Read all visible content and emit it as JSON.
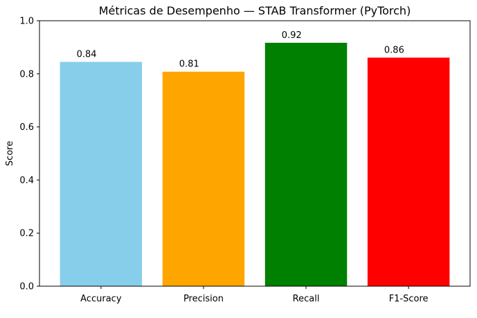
{
  "chart_data": {
    "type": "bar",
    "title": "Métricas de Desempenho — STAB Transformer (PyTorch)",
    "xlabel": "",
    "ylabel": "Score",
    "categories": [
      "Accuracy",
      "Precision",
      "Recall",
      "F1-Score"
    ],
    "values": [
      0.845,
      0.808,
      0.917,
      0.861
    ],
    "value_labels": [
      "0.84",
      "0.81",
      "0.92",
      "0.86"
    ],
    "colors": [
      "#87ceeb",
      "#ffa500",
      "#008000",
      "#ff0000"
    ],
    "ylim": [
      0,
      1.0
    ],
    "yticks": [
      0.0,
      0.2,
      0.4,
      0.6,
      0.8,
      1.0
    ],
    "ytick_labels": [
      "0.0",
      "0.2",
      "0.4",
      "0.6",
      "0.8",
      "1.0"
    ],
    "grid": false,
    "legend": "none"
  }
}
